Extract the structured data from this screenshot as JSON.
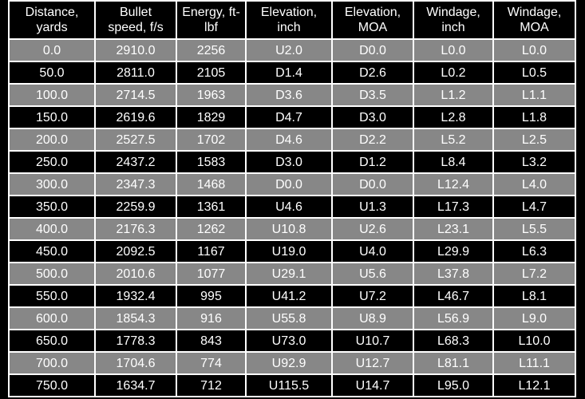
{
  "table": {
    "header": [
      [
        "Distance,",
        "yards"
      ],
      [
        "Bullet",
        "speed, f/s"
      ],
      [
        "Energy, ft-",
        "lbf"
      ],
      [
        "Elevation,",
        "inch"
      ],
      [
        "Elevation,",
        "MOA"
      ],
      [
        "Windage,",
        "inch"
      ],
      [
        "Windage,",
        "MOA"
      ]
    ],
    "rows": [
      [
        "0.0",
        "2910.0",
        "2256",
        "U2.0",
        "D0.0",
        "L0.0",
        "L0.0"
      ],
      [
        "50.0",
        "2811.0",
        "2105",
        "D1.4",
        "D2.6",
        "L0.2",
        "L0.5"
      ],
      [
        "100.0",
        "2714.5",
        "1963",
        "D3.6",
        "D3.5",
        "L1.2",
        "L1.1"
      ],
      [
        "150.0",
        "2619.6",
        "1829",
        "D4.7",
        "D3.0",
        "L2.8",
        "L1.8"
      ],
      [
        "200.0",
        "2527.5",
        "1702",
        "D4.6",
        "D2.2",
        "L5.2",
        "L2.5"
      ],
      [
        "250.0",
        "2437.2",
        "1583",
        "D3.0",
        "D1.2",
        "L8.4",
        "L3.2"
      ],
      [
        "300.0",
        "2347.3",
        "1468",
        "D0.0",
        "D0.0",
        "L12.4",
        "L4.0"
      ],
      [
        "350.0",
        "2259.9",
        "1361",
        "U4.6",
        "U1.3",
        "L17.3",
        "L4.7"
      ],
      [
        "400.0",
        "2176.3",
        "1262",
        "U10.8",
        "U2.6",
        "L23.1",
        "L5.5"
      ],
      [
        "450.0",
        "2092.5",
        "1167",
        "U19.0",
        "U4.0",
        "L29.9",
        "L6.3"
      ],
      [
        "500.0",
        "2010.6",
        "1077",
        "U29.1",
        "U5.6",
        "L37.8",
        "L7.2"
      ],
      [
        "550.0",
        "1932.4",
        "995",
        "U41.2",
        "U7.2",
        "L46.7",
        "L8.1"
      ],
      [
        "600.0",
        "1854.3",
        "916",
        "U55.8",
        "U8.9",
        "L56.9",
        "L9.0"
      ],
      [
        "650.0",
        "1778.3",
        "843",
        "U73.0",
        "U10.7",
        "L68.3",
        "L10.0"
      ],
      [
        "700.0",
        "1704.6",
        "774",
        "U92.9",
        "U12.7",
        "L81.1",
        "L11.1"
      ],
      [
        "750.0",
        "1634.7",
        "712",
        "U115.5",
        "U14.7",
        "L95.0",
        "L12.1"
      ]
    ]
  }
}
